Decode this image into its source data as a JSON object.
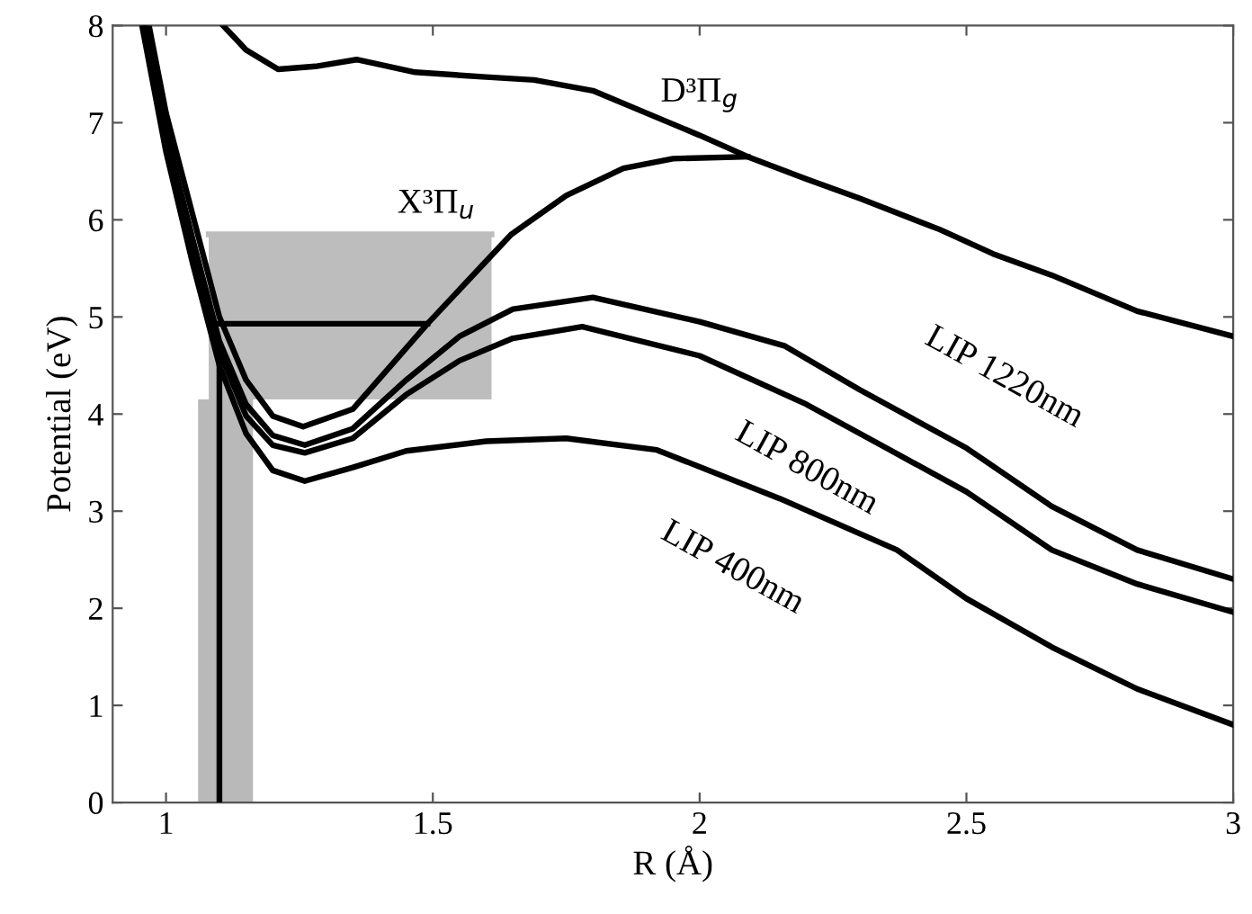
{
  "chart_data": {
    "type": "line",
    "xlabel": "R (Å)",
    "ylabel": "Potential (eV)",
    "xlim": [
      0.9,
      3
    ],
    "ylim": [
      0,
      8
    ],
    "xticks": [
      1,
      1.5,
      2,
      2.5,
      3
    ],
    "yticks": [
      0,
      1,
      2,
      3,
      4,
      5,
      6,
      7,
      8
    ],
    "grid": false,
    "legend": false,
    "series": [
      {
        "type": "area",
        "color": "#b9b9b9",
        "x": [
          1.06,
          1.163
        ],
        "values": [
          4.15,
          4.15
        ]
      },
      {
        "type": "line",
        "color": "#bdbdbd",
        "x": [
          1.08,
          1.35,
          1.61
        ],
        "lower": [
          4.15,
          4.15,
          4.15
        ],
        "upper": [
          5.85,
          5.85,
          5.85
        ],
        "values": [
          5.85,
          5.85,
          5.85
        ]
      },
      {
        "type": "line",
        "color": "#000000",
        "x": [
          1.1,
          1.1
        ],
        "values": [
          0,
          4.5
        ]
      },
      {
        "type": "line",
        "color": "#000000",
        "x": [
          1.1,
          1.49
        ],
        "values": [
          4.93,
          4.93
        ]
      },
      {
        "name": "D³Π$_{g}$",
        "color": "#000000",
        "x": [
          1.107,
          1.15,
          1.21,
          1.28,
          1.357,
          1.467,
          1.6,
          1.69,
          1.8,
          1.9,
          2.0,
          2.09,
          2.2,
          2.3,
          2.45,
          2.55,
          2.66,
          2.82,
          3.0
        ],
        "values": [
          8,
          7.75,
          7.55,
          7.58,
          7.65,
          7.52,
          7.47,
          7.44,
          7.33,
          7.1,
          6.87,
          6.65,
          6.42,
          6.22,
          5.9,
          5.65,
          5.43,
          5.06,
          4.8
        ]
      },
      {
        "name": "X³Π$_{u}$",
        "color": "#000000",
        "x": [
          0.968,
          1.0,
          1.05,
          1.1,
          1.15,
          1.2,
          1.257,
          1.35,
          1.49,
          1.647,
          1.75,
          1.857,
          1.95,
          2.09
        ],
        "values": [
          8,
          7.1,
          6.05,
          5.0,
          4.35,
          3.98,
          3.87,
          4.05,
          4.93,
          5.85,
          6.25,
          6.53,
          6.63,
          6.65
        ]
      },
      {
        "name": "LIP 1220nm",
        "color": "#000000",
        "x": [
          0.962,
          1.0,
          1.05,
          1.1,
          1.15,
          1.2,
          1.26,
          1.35,
          1.45,
          1.55,
          1.65,
          1.8,
          2.0,
          2.16,
          2.3,
          2.5,
          2.66,
          2.82,
          3.0
        ],
        "values": [
          8,
          6.9,
          5.8,
          4.75,
          4.1,
          3.78,
          3.68,
          3.85,
          4.35,
          4.8,
          5.08,
          5.2,
          4.95,
          4.7,
          4.25,
          3.65,
          3.05,
          2.6,
          2.3
        ]
      },
      {
        "name": "LIP 800nm",
        "color": "#000000",
        "x": [
          0.958,
          1.0,
          1.05,
          1.1,
          1.15,
          1.2,
          1.26,
          1.35,
          1.45,
          1.55,
          1.65,
          1.78,
          2.0,
          2.2,
          2.35,
          2.5,
          2.66,
          2.82,
          3.0
        ],
        "values": [
          8,
          6.8,
          5.7,
          4.65,
          3.98,
          3.68,
          3.6,
          3.75,
          4.2,
          4.55,
          4.78,
          4.9,
          4.6,
          4.1,
          3.65,
          3.2,
          2.6,
          2.25,
          1.96
        ]
      },
      {
        "name": "LIP 400nm",
        "color": "#000000",
        "x": [
          0.955,
          1.0,
          1.05,
          1.1,
          1.15,
          1.2,
          1.26,
          1.35,
          1.45,
          1.6,
          1.75,
          1.92,
          2.15,
          2.37,
          2.5,
          2.66,
          2.82,
          3.0
        ],
        "values": [
          8,
          6.7,
          5.55,
          4.5,
          3.8,
          3.42,
          3.31,
          3.45,
          3.62,
          3.72,
          3.75,
          3.63,
          3.13,
          2.6,
          2.1,
          1.6,
          1.17,
          0.8
        ]
      }
    ]
  }
}
